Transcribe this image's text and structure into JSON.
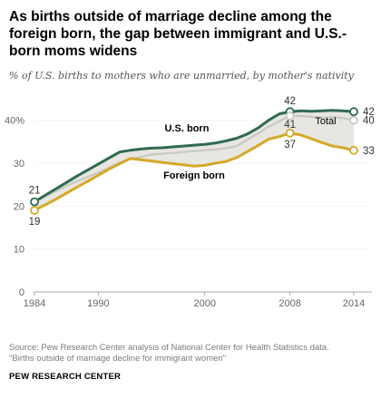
{
  "title": "As births outside of marriage decline among the foreign born, the gap between immigrant and U.S.-born moms widens",
  "subtitle": "% of U.S. births to mothers who are unmarried, by mother's nativity",
  "source_line1": "Source: Pew Research Center analysis of National Center for Health Statistics data.",
  "source_line2": "\"Births outside of marriage decline for immigrant women\"",
  "brand": "PEW RESEARCH CENTER",
  "colors": {
    "us_born": "#2f6b52",
    "foreign_born": "#d4a92a",
    "total": "#c9c9c1",
    "gap_fill": "#e7e6e0",
    "grid": "#dcdcdc",
    "axis": "#aaaaaa"
  },
  "chart_data": {
    "type": "line",
    "x": [
      1984,
      1985,
      1986,
      1987,
      1988,
      1989,
      1990,
      1991,
      1992,
      1993,
      1994,
      1995,
      1996,
      1997,
      1998,
      1999,
      2000,
      2001,
      2002,
      2003,
      2004,
      2005,
      2006,
      2007,
      2008,
      2009,
      2010,
      2011,
      2012,
      2013,
      2014
    ],
    "xticks": [
      "1984",
      "1990",
      "2000",
      "2008",
      "2014"
    ],
    "ylim": [
      0,
      45
    ],
    "yticks": [
      "0",
      "10",
      "20",
      "30",
      "40%"
    ],
    "series": [
      {
        "name": "U.S. born",
        "color": "#2f6b52",
        "values": [
          21,
          22.5,
          24,
          25.5,
          27,
          28.4,
          29.8,
          31.2,
          32.6,
          33,
          33.3,
          33.5,
          33.6,
          33.8,
          34,
          34.2,
          34.4,
          34.7,
          35.2,
          35.8,
          36.8,
          38.2,
          40,
          41.5,
          42,
          42.2,
          42.1,
          42.2,
          42.3,
          42.2,
          42
        ]
      },
      {
        "name": "Total",
        "color": "#c9c9c1",
        "values": [
          21,
          22.3,
          23.5,
          24.7,
          25.8,
          26.8,
          27.8,
          29,
          30.1,
          30.9,
          31.5,
          32,
          32.2,
          32.4,
          32.6,
          32.8,
          33,
          33.2,
          33.5,
          34,
          35.5,
          36.9,
          38.5,
          39.8,
          41,
          41,
          40.8,
          40.6,
          40.7,
          40.5,
          40
        ]
      },
      {
        "name": "Foreign born",
        "color": "#d4a92a",
        "values": [
          19,
          20.3,
          21.6,
          23,
          24.4,
          25.8,
          27.2,
          28.6,
          29.9,
          31.1,
          30.8,
          30.5,
          30.2,
          29.9,
          29.6,
          29.3,
          29.5,
          30,
          30.4,
          31.3,
          32.7,
          34.1,
          35.6,
          36.2,
          37,
          36.6,
          35.7,
          34.8,
          34.0,
          33.6,
          33
        ]
      }
    ],
    "labels": [
      {
        "text": "21",
        "x": 1984,
        "y": 21
      },
      {
        "text": "19",
        "x": 1984,
        "y": 19
      },
      {
        "text": "42",
        "x": 2008,
        "y": 42
      },
      {
        "text": "41",
        "x": 2008,
        "y": 41
      },
      {
        "text": "37",
        "x": 2008,
        "y": 37
      },
      {
        "text": "42",
        "x": 2014,
        "y": 42
      },
      {
        "text": "40",
        "x": 2014,
        "y": 40
      },
      {
        "text": "33",
        "x": 2014,
        "y": 33
      }
    ]
  }
}
